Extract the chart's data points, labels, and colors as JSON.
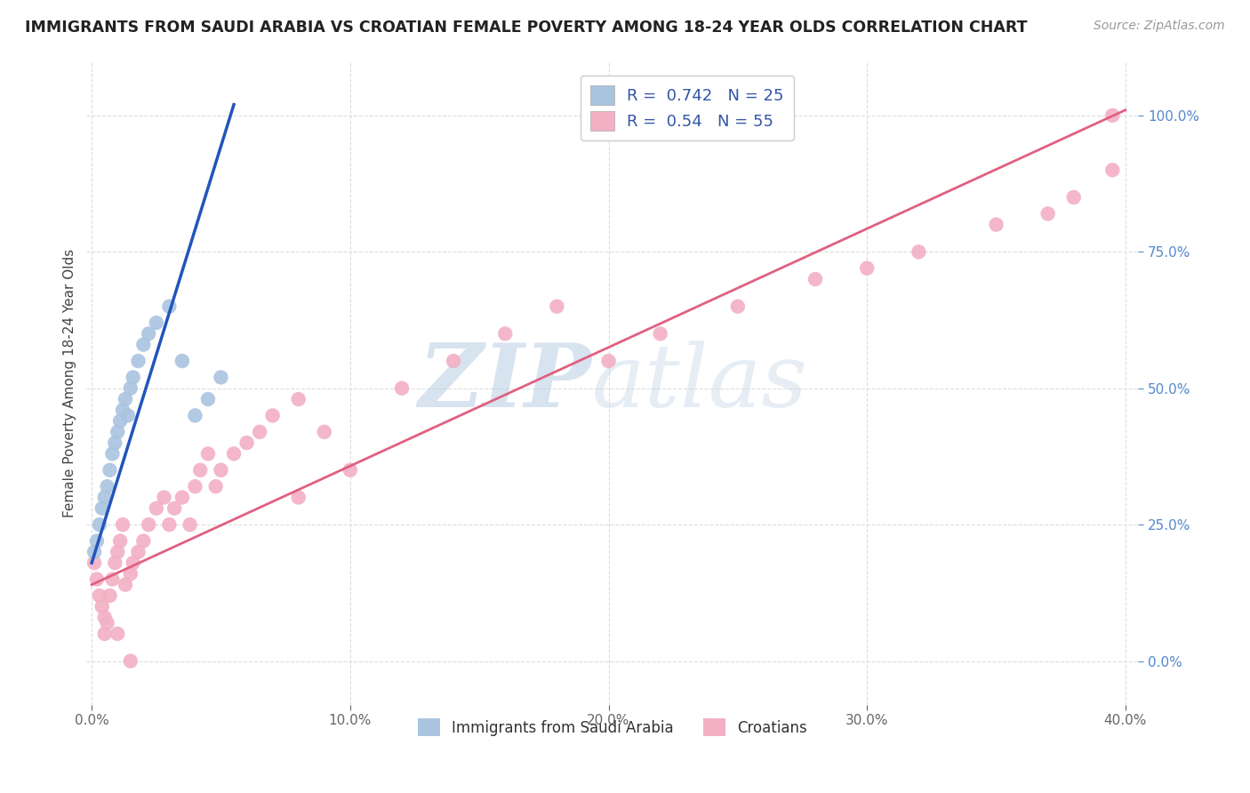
{
  "title": "IMMIGRANTS FROM SAUDI ARABIA VS CROATIAN FEMALE POVERTY AMONG 18-24 YEAR OLDS CORRELATION CHART",
  "source": "Source: ZipAtlas.com",
  "ylabel": "Female Poverty Among 18-24 Year Olds",
  "xlim": [
    -0.002,
    0.405
  ],
  "ylim": [
    -0.08,
    1.1
  ],
  "blue_R": 0.742,
  "blue_N": 25,
  "pink_R": 0.54,
  "pink_N": 55,
  "blue_color": "#aac4e0",
  "pink_color": "#f2b0c4",
  "blue_line_color": "#2255bb",
  "pink_line_color": "#e06080",
  "legend_label_blue": "Immigrants from Saudi Arabia",
  "legend_label_pink": "Croatians",
  "watermark_zip": "ZIP",
  "watermark_atlas": "atlas",
  "blue_scatter_x": [
    0.001,
    0.002,
    0.003,
    0.004,
    0.005,
    0.006,
    0.007,
    0.008,
    0.009,
    0.01,
    0.011,
    0.012,
    0.013,
    0.014,
    0.015,
    0.016,
    0.018,
    0.02,
    0.022,
    0.025,
    0.03,
    0.035,
    0.04,
    0.045,
    0.05
  ],
  "blue_scatter_y": [
    0.2,
    0.22,
    0.25,
    0.28,
    0.3,
    0.32,
    0.35,
    0.38,
    0.4,
    0.42,
    0.44,
    0.46,
    0.48,
    0.45,
    0.5,
    0.52,
    0.55,
    0.58,
    0.6,
    0.62,
    0.65,
    0.55,
    0.45,
    0.48,
    0.52
  ],
  "pink_scatter_x": [
    0.001,
    0.002,
    0.003,
    0.004,
    0.005,
    0.006,
    0.007,
    0.008,
    0.009,
    0.01,
    0.011,
    0.012,
    0.013,
    0.015,
    0.016,
    0.018,
    0.02,
    0.022,
    0.025,
    0.028,
    0.03,
    0.032,
    0.035,
    0.038,
    0.04,
    0.042,
    0.045,
    0.048,
    0.05,
    0.055,
    0.06,
    0.065,
    0.07,
    0.08,
    0.09,
    0.1,
    0.12,
    0.14,
    0.16,
    0.18,
    0.2,
    0.22,
    0.25,
    0.28,
    0.3,
    0.32,
    0.35,
    0.37,
    0.38,
    0.395,
    0.005,
    0.01,
    0.015,
    0.08,
    0.395
  ],
  "pink_scatter_y": [
    0.18,
    0.15,
    0.12,
    0.1,
    0.08,
    0.07,
    0.12,
    0.15,
    0.18,
    0.2,
    0.22,
    0.25,
    0.14,
    0.16,
    0.18,
    0.2,
    0.22,
    0.25,
    0.28,
    0.3,
    0.25,
    0.28,
    0.3,
    0.25,
    0.32,
    0.35,
    0.38,
    0.32,
    0.35,
    0.38,
    0.4,
    0.42,
    0.45,
    0.48,
    0.42,
    0.35,
    0.5,
    0.55,
    0.6,
    0.65,
    0.55,
    0.6,
    0.65,
    0.7,
    0.72,
    0.75,
    0.8,
    0.82,
    0.85,
    0.9,
    0.05,
    0.05,
    0.0,
    0.3,
    1.0
  ],
  "blue_line_x0": 0.0,
  "blue_line_y0": 0.18,
  "blue_line_x1": 0.055,
  "blue_line_y1": 1.02,
  "pink_line_x0": 0.0,
  "pink_line_y0": 0.14,
  "pink_line_x1": 0.4,
  "pink_line_y1": 1.01,
  "xtick_vals": [
    0.0,
    0.1,
    0.2,
    0.3,
    0.4
  ],
  "ytick_vals": [
    0.0,
    0.25,
    0.5,
    0.75,
    1.0
  ]
}
